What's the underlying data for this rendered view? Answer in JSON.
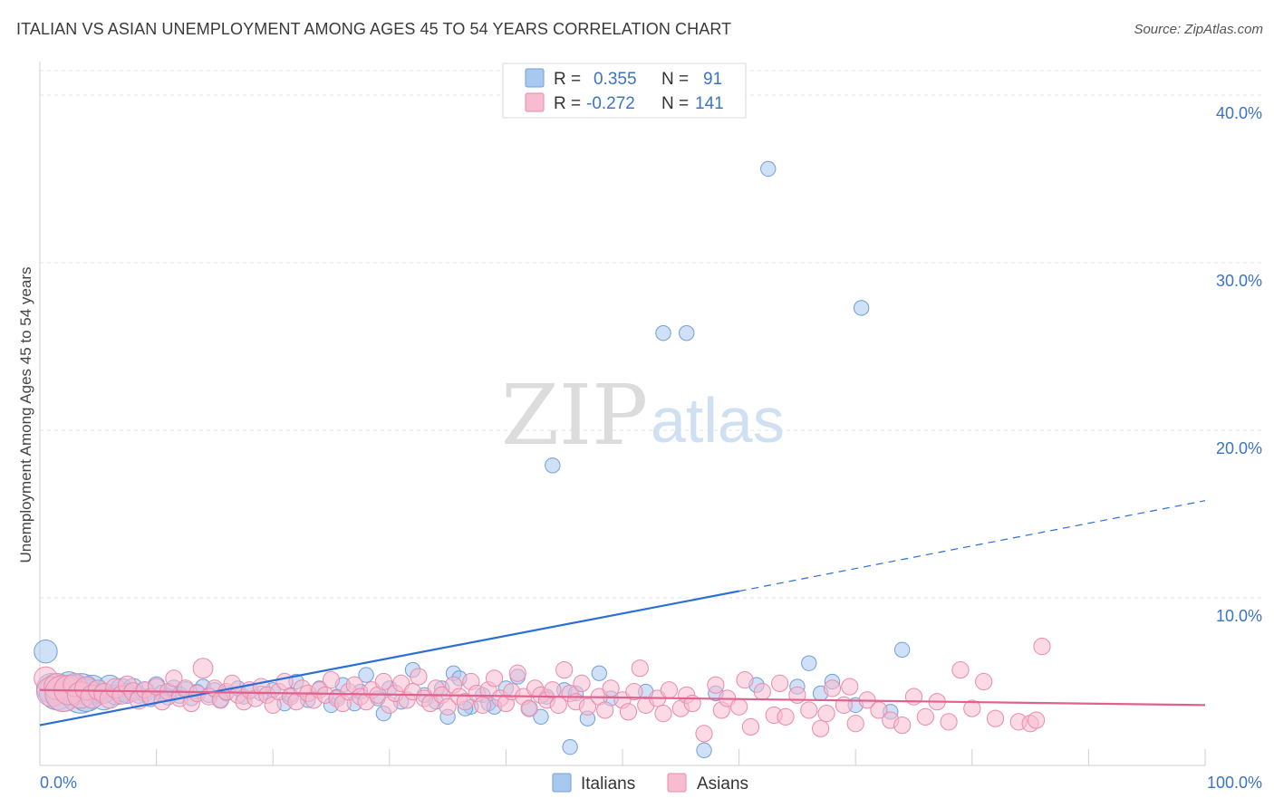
{
  "title": "ITALIAN VS ASIAN UNEMPLOYMENT AMONG AGES 45 TO 54 YEARS CORRELATION CHART",
  "source": "Source: ZipAtlas.com",
  "watermark": {
    "zip": "ZIP",
    "atlas": "atlas"
  },
  "colors": {
    "italians_fill": "#a9c8f0",
    "italians_stroke": "#6f9fd8",
    "italians_line": "#2a6fd6",
    "asians_fill": "#f7bccf",
    "asians_stroke": "#e98aaa",
    "asians_line": "#e0608e",
    "tick_text": "#3b73c8",
    "grid": "#e3e3e3"
  },
  "legend": {
    "rows": [
      {
        "r_label": "R =",
        "r_value": "0.355",
        "n_label": "N =",
        "n_value": "91",
        "series": "italians"
      },
      {
        "r_label": "R =",
        "r_value": "-0.272",
        "n_label": "N =",
        "n_value": "141",
        "series": "asians"
      }
    ]
  },
  "bottom_legend": [
    {
      "label": "Italians",
      "series": "italians"
    },
    {
      "label": "Asians",
      "series": "asians"
    }
  ],
  "chart_data": {
    "type": "scatter",
    "title": "ITALIAN VS ASIAN UNEMPLOYMENT AMONG AGES 45 TO 54 YEARS CORRELATION CHART",
    "xlabel": "",
    "ylabel": "Unemployment Among Ages 45 to 54 years",
    "xlim": [
      0,
      100
    ],
    "ylim": [
      0,
      42
    ],
    "x_tick_labels": [
      {
        "value": 0,
        "label": "0.0%"
      },
      {
        "value": 100,
        "label": "100.0%"
      }
    ],
    "x_minor_ticks": [
      10,
      20,
      30,
      40,
      50,
      60,
      70,
      80,
      90
    ],
    "y_ticks": [
      {
        "value": 10,
        "label": "10.0%"
      },
      {
        "value": 20,
        "label": "20.0%"
      },
      {
        "value": 30,
        "label": "30.0%"
      },
      {
        "value": 40,
        "label": "40.0%"
      }
    ],
    "series": [
      {
        "name": "Italians",
        "key": "italians",
        "trend": {
          "x0": 0,
          "y0": 2.4,
          "x1": 60,
          "y1": 10.4,
          "dash_to_x": 100,
          "dash_to_y": 15.8
        },
        "points": [
          [
            0.5,
            6.8,
            14
          ],
          [
            1,
            4.6,
            18
          ],
          [
            1.5,
            4.4,
            22
          ],
          [
            2,
            4.2,
            20
          ],
          [
            2.5,
            4.8,
            16
          ],
          [
            3,
            4.5,
            18
          ],
          [
            3.5,
            4.3,
            24
          ],
          [
            4,
            4.2,
            20
          ],
          [
            4.5,
            4.6,
            16
          ],
          [
            5,
            4.4,
            14
          ],
          [
            5.5,
            4.1,
            16
          ],
          [
            6,
            4.7,
            14
          ],
          [
            6.5,
            4.2,
            12
          ],
          [
            7,
            4.5,
            14
          ],
          [
            7.5,
            4.3,
            12
          ],
          [
            8,
            4.6,
            12
          ],
          [
            8.5,
            4.2,
            10
          ],
          [
            9,
            4.4,
            12
          ],
          [
            9.5,
            4.0,
            10
          ],
          [
            10,
            4.8,
            10
          ],
          [
            10.5,
            4.3,
            10
          ],
          [
            11,
            4.1,
            10
          ],
          [
            11.5,
            4.6,
            10
          ],
          [
            12,
            4.2,
            10
          ],
          [
            12.5,
            4.5,
            10
          ],
          [
            13,
            4.0,
            9
          ],
          [
            13.5,
            4.4,
            9
          ],
          [
            14,
            4.7,
            9
          ],
          [
            14.5,
            4.2,
            9
          ],
          [
            15,
            4.5,
            9
          ],
          [
            15.5,
            3.9,
            9
          ],
          [
            16,
            4.3,
            9
          ],
          [
            17,
            4.6,
            9
          ],
          [
            17.5,
            4.1,
            9
          ],
          [
            18,
            4.4,
            9
          ],
          [
            19,
            4.3,
            9
          ],
          [
            20,
            4.5,
            9
          ],
          [
            21,
            3.7,
            9
          ],
          [
            21.5,
            4.2,
            9
          ],
          [
            22,
            5.0,
            9
          ],
          [
            23,
            3.9,
            9
          ],
          [
            24,
            4.6,
            9
          ],
          [
            25,
            3.6,
            9
          ],
          [
            25.5,
            4.1,
            9
          ],
          [
            26,
            4.8,
            9
          ],
          [
            27,
            3.7,
            9
          ],
          [
            27.5,
            4.4,
            9
          ],
          [
            28,
            5.4,
            9
          ],
          [
            29,
            4.0,
            9
          ],
          [
            30,
            4.6,
            9
          ],
          [
            31,
            3.8,
            9
          ],
          [
            32,
            5.7,
            9
          ],
          [
            33,
            4.2,
            9
          ],
          [
            34,
            3.8,
            9
          ],
          [
            34.5,
            4.6,
            9
          ],
          [
            35,
            2.9,
            9
          ],
          [
            35.5,
            5.5,
            9
          ],
          [
            36,
            5.2,
            9
          ],
          [
            37,
            3.5,
            9
          ],
          [
            38,
            4.2,
            9
          ],
          [
            38.5,
            3.7,
            9
          ],
          [
            39,
            3.5,
            9
          ],
          [
            40,
            4.6,
            9
          ],
          [
            41,
            5.3,
            9
          ],
          [
            42,
            3.4,
            9
          ],
          [
            43,
            2.9,
            9
          ],
          [
            43.5,
            4.1,
            9
          ],
          [
            44,
            17.9,
            9
          ],
          [
            45,
            4.5,
            9
          ],
          [
            45.5,
            1.1,
            9
          ],
          [
            46,
            4.3,
            9
          ],
          [
            47,
            2.8,
            9
          ],
          [
            48,
            5.5,
            9
          ],
          [
            49,
            4.0,
            9
          ],
          [
            52,
            4.4,
            9
          ],
          [
            53.5,
            25.8,
            9
          ],
          [
            55.5,
            25.8,
            9
          ],
          [
            57,
            0.9,
            9
          ],
          [
            58,
            4.3,
            9
          ],
          [
            61.5,
            4.8,
            9
          ],
          [
            62.5,
            35.6,
            9
          ],
          [
            65,
            4.7,
            9
          ],
          [
            66,
            6.1,
            9
          ],
          [
            67,
            4.3,
            9
          ],
          [
            68,
            5.0,
            9
          ],
          [
            70,
            3.6,
            9
          ],
          [
            70.5,
            27.3,
            9
          ],
          [
            73,
            3.2,
            9
          ],
          [
            74,
            6.9,
            9
          ],
          [
            36.5,
            3.4,
            9
          ],
          [
            29.5,
            3.1,
            9
          ]
        ]
      },
      {
        "name": "Asians",
        "key": "asians",
        "trend": {
          "x0": 0,
          "y0": 4.5,
          "x1": 100,
          "y1": 3.6
        },
        "points": [
          [
            0.5,
            5.2,
            14
          ],
          [
            1,
            4.4,
            18
          ],
          [
            1.5,
            4.7,
            16
          ],
          [
            2,
            4.3,
            22
          ],
          [
            2.5,
            4.5,
            18
          ],
          [
            3,
            4.8,
            14
          ],
          [
            3.5,
            4.2,
            16
          ],
          [
            4,
            4.6,
            14
          ],
          [
            4.5,
            4.1,
            14
          ],
          [
            5,
            4.5,
            12
          ],
          [
            5.5,
            4.3,
            12
          ],
          [
            6,
            4.0,
            12
          ],
          [
            6.5,
            4.6,
            12
          ],
          [
            7,
            4.2,
            11
          ],
          [
            7.5,
            4.8,
            11
          ],
          [
            8,
            4.4,
            11
          ],
          [
            8.5,
            3.9,
            11
          ],
          [
            9,
            4.5,
            10
          ],
          [
            9.5,
            4.1,
            10
          ],
          [
            10,
            4.7,
            10
          ],
          [
            10.5,
            3.8,
            10
          ],
          [
            11,
            4.4,
            10
          ],
          [
            11.5,
            5.2,
            10
          ],
          [
            12,
            4.0,
            10
          ],
          [
            12.5,
            4.6,
            10
          ],
          [
            13,
            3.7,
            10
          ],
          [
            13.5,
            4.3,
            10
          ],
          [
            14,
            5.8,
            12
          ],
          [
            14.5,
            4.1,
            10
          ],
          [
            15,
            4.6,
            10
          ],
          [
            15.5,
            3.9,
            10
          ],
          [
            16,
            4.4,
            10
          ],
          [
            16.5,
            4.9,
            10
          ],
          [
            17,
            4.2,
            10
          ],
          [
            17.5,
            3.8,
            10
          ],
          [
            18,
            4.5,
            10
          ],
          [
            18.5,
            4.0,
            10
          ],
          [
            19,
            4.7,
            10
          ],
          [
            19.5,
            4.2,
            10
          ],
          [
            20,
            3.6,
            10
          ],
          [
            20.5,
            4.4,
            10
          ],
          [
            21,
            5.0,
            10
          ],
          [
            21.5,
            4.1,
            10
          ],
          [
            22,
            3.8,
            10
          ],
          [
            22.5,
            4.6,
            10
          ],
          [
            23,
            4.3,
            10
          ],
          [
            23.5,
            3.9,
            10
          ],
          [
            24,
            4.5,
            10
          ],
          [
            24.5,
            4.2,
            10
          ],
          [
            25,
            5.1,
            10
          ],
          [
            25.5,
            4.0,
            10
          ],
          [
            26,
            3.7,
            10
          ],
          [
            26.5,
            4.4,
            10
          ],
          [
            27,
            4.8,
            10
          ],
          [
            27.5,
            4.1,
            10
          ],
          [
            28,
            3.8,
            10
          ],
          [
            28.5,
            4.5,
            10
          ],
          [
            29,
            4.2,
            10
          ],
          [
            29.5,
            5.0,
            10
          ],
          [
            30,
            3.6,
            10
          ],
          [
            30.5,
            4.3,
            10
          ],
          [
            31,
            4.9,
            10
          ],
          [
            31.5,
            3.9,
            10
          ],
          [
            32,
            4.4,
            10
          ],
          [
            32.5,
            5.3,
            10
          ],
          [
            33,
            4.0,
            10
          ],
          [
            33.5,
            3.7,
            10
          ],
          [
            34,
            4.6,
            10
          ],
          [
            34.5,
            4.2,
            10
          ],
          [
            35,
            3.5,
            10
          ],
          [
            35.5,
            4.8,
            10
          ],
          [
            36,
            4.1,
            10
          ],
          [
            36.5,
            3.8,
            10
          ],
          [
            37,
            5.0,
            10
          ],
          [
            37.5,
            4.3,
            10
          ],
          [
            38,
            3.6,
            10
          ],
          [
            38.5,
            4.5,
            10
          ],
          [
            39,
            5.2,
            10
          ],
          [
            39.5,
            4.0,
            10
          ],
          [
            40,
            3.7,
            10
          ],
          [
            40.5,
            4.4,
            10
          ],
          [
            41,
            5.5,
            10
          ],
          [
            41.5,
            4.1,
            10
          ],
          [
            42,
            3.4,
            10
          ],
          [
            42.5,
            4.6,
            10
          ],
          [
            43,
            4.2,
            10
          ],
          [
            43.5,
            3.9,
            10
          ],
          [
            44,
            4.5,
            10
          ],
          [
            44.5,
            3.6,
            10
          ],
          [
            45,
            5.7,
            10
          ],
          [
            45.5,
            4.3,
            10
          ],
          [
            46,
            3.8,
            10
          ],
          [
            46.5,
            4.9,
            10
          ],
          [
            47,
            3.5,
            10
          ],
          [
            48,
            4.1,
            10
          ],
          [
            48.5,
            3.3,
            10
          ],
          [
            49,
            4.6,
            10
          ],
          [
            50,
            3.9,
            10
          ],
          [
            50.5,
            3.2,
            10
          ],
          [
            51,
            4.4,
            10
          ],
          [
            51.5,
            5.8,
            10
          ],
          [
            52,
            3.6,
            10
          ],
          [
            53,
            4.0,
            10
          ],
          [
            53.5,
            3.1,
            10
          ],
          [
            54,
            4.5,
            10
          ],
          [
            55,
            3.4,
            10
          ],
          [
            55.5,
            4.2,
            10
          ],
          [
            56,
            3.7,
            10
          ],
          [
            57,
            1.9,
            10
          ],
          [
            58,
            4.8,
            10
          ],
          [
            58.5,
            3.3,
            10
          ],
          [
            59,
            4.0,
            10
          ],
          [
            60,
            3.5,
            10
          ],
          [
            60.5,
            5.1,
            10
          ],
          [
            61,
            2.3,
            10
          ],
          [
            62,
            4.4,
            10
          ],
          [
            63,
            3.0,
            10
          ],
          [
            63.5,
            4.9,
            10
          ],
          [
            64,
            2.9,
            10
          ],
          [
            65,
            4.2,
            10
          ],
          [
            66,
            3.3,
            10
          ],
          [
            67,
            2.2,
            10
          ],
          [
            68,
            4.6,
            10
          ],
          [
            69,
            3.6,
            10
          ],
          [
            69.5,
            4.7,
            10
          ],
          [
            70,
            2.5,
            10
          ],
          [
            71,
            3.9,
            10
          ],
          [
            72,
            3.3,
            10
          ],
          [
            73,
            2.7,
            10
          ],
          [
            74,
            2.4,
            10
          ],
          [
            75,
            4.1,
            10
          ],
          [
            76,
            2.9,
            10
          ],
          [
            77,
            3.8,
            10
          ],
          [
            78,
            2.6,
            10
          ],
          [
            79,
            5.7,
            10
          ],
          [
            80,
            3.4,
            10
          ],
          [
            81,
            5.0,
            10
          ],
          [
            82,
            2.8,
            10
          ],
          [
            84,
            2.6,
            10
          ],
          [
            85,
            2.5,
            10
          ],
          [
            85.5,
            2.7,
            10
          ],
          [
            86,
            7.1,
            10
          ],
          [
            67.5,
            3.1,
            10
          ]
        ]
      }
    ]
  }
}
